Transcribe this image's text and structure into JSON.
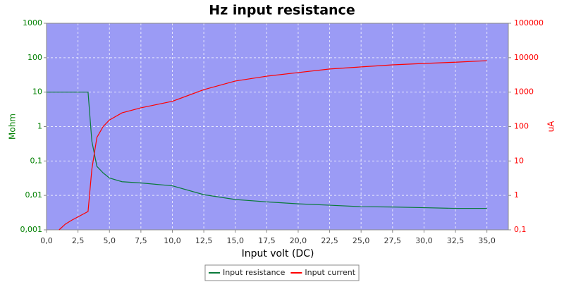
{
  "chart_data": {
    "type": "line",
    "title": "Hz input resistance",
    "x_label": "Input volt (DC)",
    "y_label": "Mohm",
    "y2_label": "uA",
    "log_y": true,
    "log_y2": true,
    "grid": true,
    "legend": "bottom",
    "background": "#9b9bf5",
    "x": [
      0,
      1,
      1.5,
      2,
      3.3,
      3.6,
      4,
      4.5,
      5,
      6,
      7.5,
      10,
      12.5,
      15,
      17.5,
      20,
      22.5,
      25,
      27.5,
      30,
      32.5,
      35
    ],
    "xlim": [
      0,
      36.7
    ],
    "xticks": [
      {
        "value": 0,
        "label": "0,0"
      },
      {
        "value": 2.5,
        "label": "2,5"
      },
      {
        "value": 5,
        "label": "5,0"
      },
      {
        "value": 7.5,
        "label": "7,5"
      },
      {
        "value": 10,
        "label": "10,0"
      },
      {
        "value": 12.5,
        "label": "12,5"
      },
      {
        "value": 15,
        "label": "15,0"
      },
      {
        "value": 17.5,
        "label": "17,5"
      },
      {
        "value": 20,
        "label": "20,0"
      },
      {
        "value": 22.5,
        "label": "22,5"
      },
      {
        "value": 25,
        "label": "25,0"
      },
      {
        "value": 27.5,
        "label": "27,5"
      },
      {
        "value": 30,
        "label": "30,0"
      },
      {
        "value": 32.5,
        "label": "32,5"
      },
      {
        "value": 35,
        "label": "35,0"
      }
    ],
    "ylim": [
      0.001,
      1000
    ],
    "yticks": [
      {
        "value": 0.001,
        "label": "0,001"
      },
      {
        "value": 0.01,
        "label": "0,01"
      },
      {
        "value": 0.1,
        "label": "0,1"
      },
      1,
      10,
      100,
      1000
    ],
    "y_color": "#008000",
    "y2lim": [
      0.1,
      100000
    ],
    "y2ticks": [
      {
        "value": 0.1,
        "label": "0,1"
      },
      1,
      10,
      100,
      1000,
      10000,
      100000
    ],
    "y2_color": "#ff0000",
    "series": [
      {
        "name": "Input resistance",
        "color": "#0a7a3a",
        "values": [
          10,
          10,
          10,
          10,
          10,
          0.38,
          0.07,
          0.045,
          0.032,
          0.025,
          0.023,
          0.019,
          0.0105,
          0.0076,
          0.0065,
          0.0057,
          0.0052,
          0.0047,
          0.0046,
          0.0044,
          0.0042,
          0.0042
        ]
      },
      {
        "name": "Input current",
        "color": "#ff0000",
        "axis": "y2",
        "values": [
          null,
          0.1,
          0.147,
          0.19,
          0.34,
          5.7,
          48,
          100,
          155,
          250,
          350,
          540,
          1180,
          2100,
          2900,
          3700,
          4700,
          5400,
          6200,
          6800,
          7400,
          8200
        ]
      }
    ]
  }
}
